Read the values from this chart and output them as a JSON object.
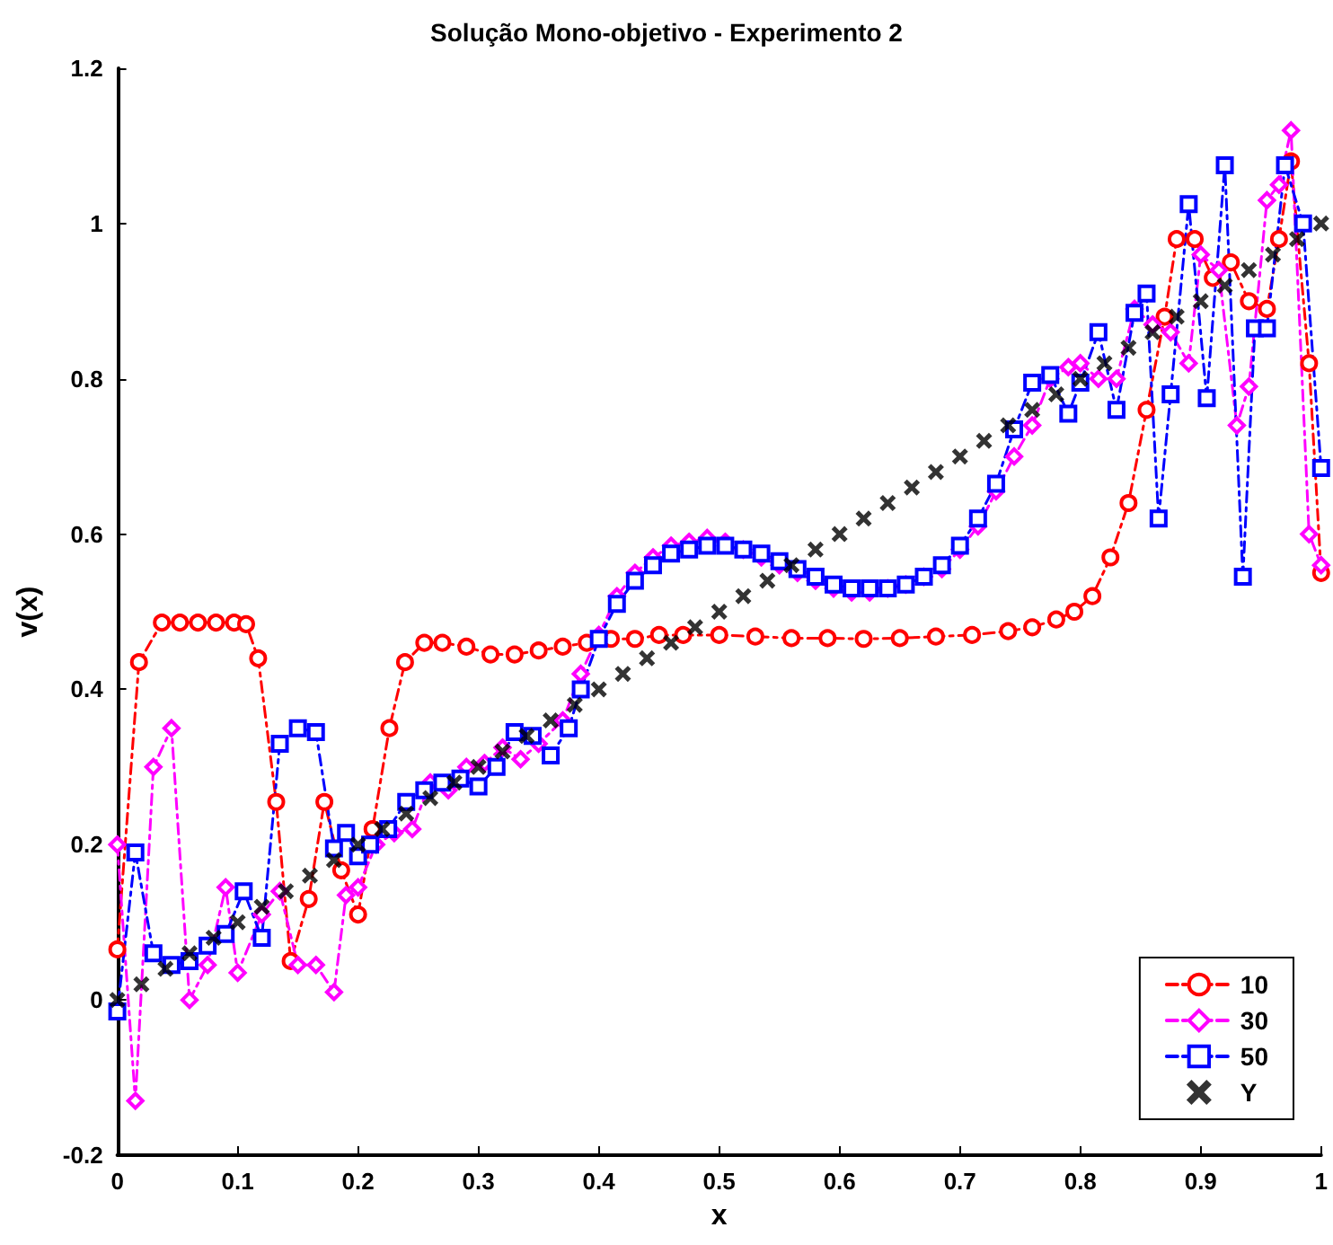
{
  "chart_data": {
    "type": "line",
    "title": "Solução Mono-objetivo - Experimento 2",
    "xlabel": "x",
    "ylabel": "v(x)",
    "xlim": [
      0,
      1
    ],
    "xticks": [
      0,
      0.1,
      0.2,
      0.3,
      0.4,
      0.5,
      0.6,
      0.7,
      0.8,
      0.9,
      1
    ],
    "ylim": [
      -0.2,
      1.2
    ],
    "yticks": [
      -0.2,
      0,
      0.2,
      0.4,
      0.6,
      0.8,
      1,
      1.2
    ],
    "grid": false,
    "legend": "bottom right",
    "line_style": "dashed",
    "series": [
      {
        "name": "10",
        "color": "#ff0000",
        "marker": "circle",
        "x": [
          0,
          0.018,
          0.037,
          0.052,
          0.067,
          0.082,
          0.097,
          0.107,
          0.117,
          0.132,
          0.144,
          0.159,
          0.172,
          0.186,
          0.2,
          0.212,
          0.226,
          0.239,
          0.255,
          0.27,
          0.29,
          0.31,
          0.33,
          0.35,
          0.37,
          0.39,
          0.41,
          0.43,
          0.45,
          0.47,
          0.5,
          0.53,
          0.56,
          0.59,
          0.62,
          0.65,
          0.68,
          0.71,
          0.74,
          0.76,
          0.78,
          0.795,
          0.81,
          0.825,
          0.84,
          0.855,
          0.87,
          0.88,
          0.895,
          0.91,
          0.925,
          0.94,
          0.955,
          0.965,
          0.975,
          0.99,
          1
        ],
        "values": [
          0.065,
          0.435,
          0.486,
          0.486,
          0.486,
          0.486,
          0.486,
          0.484,
          0.44,
          0.255,
          0.05,
          0.13,
          0.255,
          0.167,
          0.11,
          0.22,
          0.35,
          0.435,
          0.46,
          0.46,
          0.455,
          0.445,
          0.445,
          0.45,
          0.455,
          0.46,
          0.465,
          0.465,
          0.47,
          0.47,
          0.47,
          0.468,
          0.466,
          0.466,
          0.465,
          0.466,
          0.468,
          0.47,
          0.475,
          0.48,
          0.49,
          0.5,
          0.52,
          0.57,
          0.64,
          0.76,
          0.88,
          0.98,
          0.98,
          0.93,
          0.95,
          0.9,
          0.89,
          0.98,
          1.08,
          0.82,
          0.55
        ]
      },
      {
        "name": "30",
        "color": "#ff00ff",
        "marker": "diamond",
        "x": [
          0,
          0.015,
          0.03,
          0.045,
          0.06,
          0.075,
          0.09,
          0.1,
          0.12,
          0.135,
          0.15,
          0.165,
          0.18,
          0.19,
          0.2,
          0.215,
          0.23,
          0.245,
          0.26,
          0.275,
          0.29,
          0.305,
          0.32,
          0.335,
          0.35,
          0.37,
          0.385,
          0.4,
          0.415,
          0.43,
          0.445,
          0.46,
          0.475,
          0.49,
          0.505,
          0.52,
          0.535,
          0.55,
          0.565,
          0.58,
          0.595,
          0.61,
          0.625,
          0.64,
          0.655,
          0.67,
          0.685,
          0.7,
          0.715,
          0.73,
          0.745,
          0.76,
          0.775,
          0.79,
          0.8,
          0.815,
          0.83,
          0.845,
          0.86,
          0.875,
          0.89,
          0.9,
          0.915,
          0.93,
          0.94,
          0.955,
          0.965,
          0.975,
          0.99,
          1
        ],
        "values": [
          0.2,
          -0.13,
          0.3,
          0.35,
          0,
          0.045,
          0.145,
          0.035,
          0.11,
          0.14,
          0.045,
          0.045,
          0.01,
          0.135,
          0.145,
          0.2,
          0.215,
          0.22,
          0.28,
          0.27,
          0.3,
          0.305,
          0.325,
          0.31,
          0.33,
          0.36,
          0.42,
          0.47,
          0.52,
          0.55,
          0.57,
          0.585,
          0.59,
          0.595,
          0.59,
          0.58,
          0.57,
          0.56,
          0.55,
          0.54,
          0.53,
          0.525,
          0.525,
          0.53,
          0.535,
          0.545,
          0.555,
          0.58,
          0.61,
          0.655,
          0.7,
          0.74,
          0.8,
          0.815,
          0.82,
          0.8,
          0.8,
          0.89,
          0.87,
          0.86,
          0.82,
          0.96,
          0.94,
          0.74,
          0.79,
          1.03,
          1.05,
          1.12,
          0.6,
          0.56
        ]
      },
      {
        "name": "50",
        "color": "#0000ff",
        "marker": "square",
        "x": [
          0,
          0.015,
          0.03,
          0.045,
          0.06,
          0.075,
          0.09,
          0.105,
          0.12,
          0.135,
          0.15,
          0.165,
          0.18,
          0.19,
          0.2,
          0.21,
          0.225,
          0.24,
          0.255,
          0.27,
          0.285,
          0.3,
          0.315,
          0.33,
          0.345,
          0.36,
          0.375,
          0.385,
          0.4,
          0.415,
          0.43,
          0.445,
          0.46,
          0.475,
          0.49,
          0.505,
          0.52,
          0.535,
          0.55,
          0.565,
          0.58,
          0.595,
          0.61,
          0.625,
          0.64,
          0.655,
          0.67,
          0.685,
          0.7,
          0.715,
          0.73,
          0.745,
          0.76,
          0.775,
          0.79,
          0.8,
          0.815,
          0.83,
          0.845,
          0.855,
          0.865,
          0.875,
          0.89,
          0.905,
          0.92,
          0.935,
          0.945,
          0.955,
          0.97,
          0.985,
          1
        ],
        "values": [
          -0.015,
          0.19,
          0.06,
          0.045,
          0.05,
          0.07,
          0.085,
          0.14,
          0.08,
          0.33,
          0.35,
          0.345,
          0.195,
          0.215,
          0.185,
          0.2,
          0.22,
          0.255,
          0.27,
          0.28,
          0.285,
          0.275,
          0.3,
          0.345,
          0.34,
          0.315,
          0.35,
          0.4,
          0.465,
          0.51,
          0.54,
          0.56,
          0.575,
          0.58,
          0.585,
          0.585,
          0.58,
          0.575,
          0.565,
          0.555,
          0.545,
          0.535,
          0.53,
          0.53,
          0.53,
          0.535,
          0.545,
          0.56,
          0.585,
          0.62,
          0.665,
          0.735,
          0.795,
          0.805,
          0.755,
          0.795,
          0.86,
          0.76,
          0.885,
          0.91,
          0.62,
          0.78,
          1.025,
          0.775,
          1.075,
          0.545,
          0.865,
          0.865,
          1.075,
          1,
          0.685
        ]
      },
      {
        "name": "Y",
        "color": "#000000",
        "type": "scatter",
        "marker": "cross",
        "x": [
          0,
          0.02,
          0.04,
          0.06,
          0.08,
          0.1,
          0.12,
          0.14,
          0.16,
          0.18,
          0.2,
          0.22,
          0.24,
          0.26,
          0.28,
          0.3,
          0.32,
          0.34,
          0.36,
          0.38,
          0.4,
          0.42,
          0.44,
          0.46,
          0.48,
          0.5,
          0.52,
          0.54,
          0.56,
          0.58,
          0.6,
          0.62,
          0.64,
          0.66,
          0.68,
          0.7,
          0.72,
          0.74,
          0.76,
          0.78,
          0.8,
          0.82,
          0.84,
          0.86,
          0.88,
          0.9,
          0.92,
          0.94,
          0.96,
          0.98,
          1
        ],
        "values": [
          0,
          0.02,
          0.04,
          0.06,
          0.08,
          0.1,
          0.12,
          0.14,
          0.16,
          0.18,
          0.2,
          0.22,
          0.24,
          0.26,
          0.28,
          0.3,
          0.32,
          0.34,
          0.36,
          0.38,
          0.4,
          0.42,
          0.44,
          0.46,
          0.48,
          0.5,
          0.52,
          0.54,
          0.56,
          0.58,
          0.6,
          0.62,
          0.64,
          0.66,
          0.68,
          0.7,
          0.72,
          0.74,
          0.76,
          0.78,
          0.8,
          0.82,
          0.84,
          0.86,
          0.88,
          0.9,
          0.92,
          0.94,
          0.96,
          0.98,
          1
        ]
      }
    ]
  }
}
